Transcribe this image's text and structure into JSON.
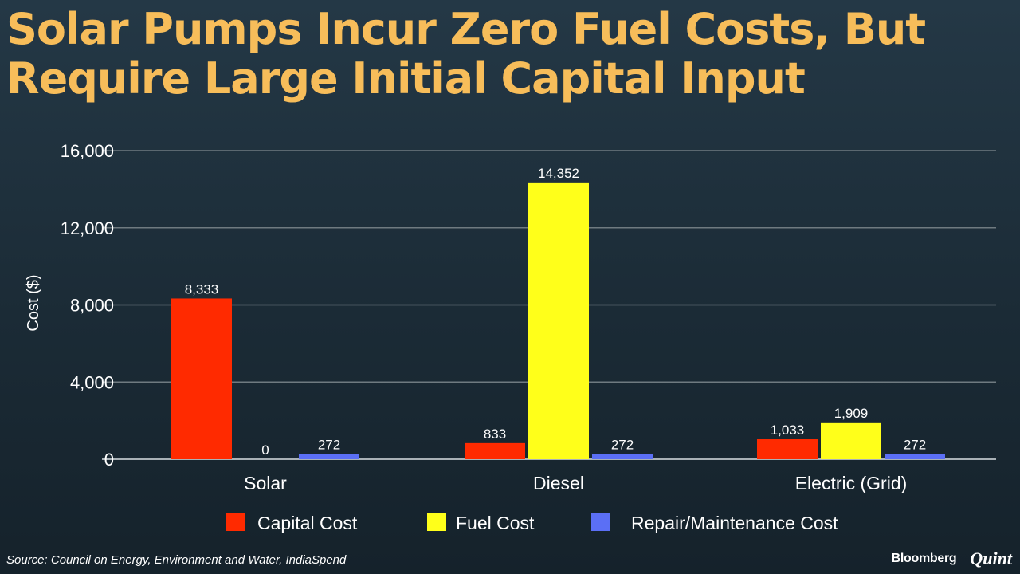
{
  "title_lines": [
    "Solar Pumps Incur Zero Fuel Costs, But",
    "Require Large Initial Capital Input"
  ],
  "source": "Source: Council on Energy, Environment and Water, IndiaSpend",
  "brand": {
    "primary": "Bloomberg",
    "secondary": "Quint"
  },
  "chart_data": {
    "type": "bar",
    "categories": [
      "Solar",
      "Diesel",
      "Electric (Grid)"
    ],
    "series": [
      {
        "name": "Capital Cost",
        "color": "#ff2a00",
        "values": [
          8333,
          833,
          1033
        ],
        "labels": [
          "8,333",
          "833",
          "1,033"
        ]
      },
      {
        "name": "Fuel Cost",
        "color": "#ffff1a",
        "values": [
          0,
          14352,
          1909
        ],
        "labels": [
          "0",
          "14,352",
          "1,909"
        ]
      },
      {
        "name": "Repair/Maintenance Cost",
        "color": "#5b6ff5",
        "values": [
          272,
          272,
          272
        ],
        "labels": [
          "272",
          "272",
          "272"
        ]
      }
    ],
    "ylabel": "Cost ($)",
    "ylim": [
      0,
      16000
    ],
    "yticks": [
      0,
      4000,
      8000,
      12000,
      16000
    ],
    "ytick_labels": [
      "0",
      "4,000",
      "8,000",
      "12,000",
      "16,000"
    ],
    "grid": true,
    "legend": "bottom-center"
  }
}
